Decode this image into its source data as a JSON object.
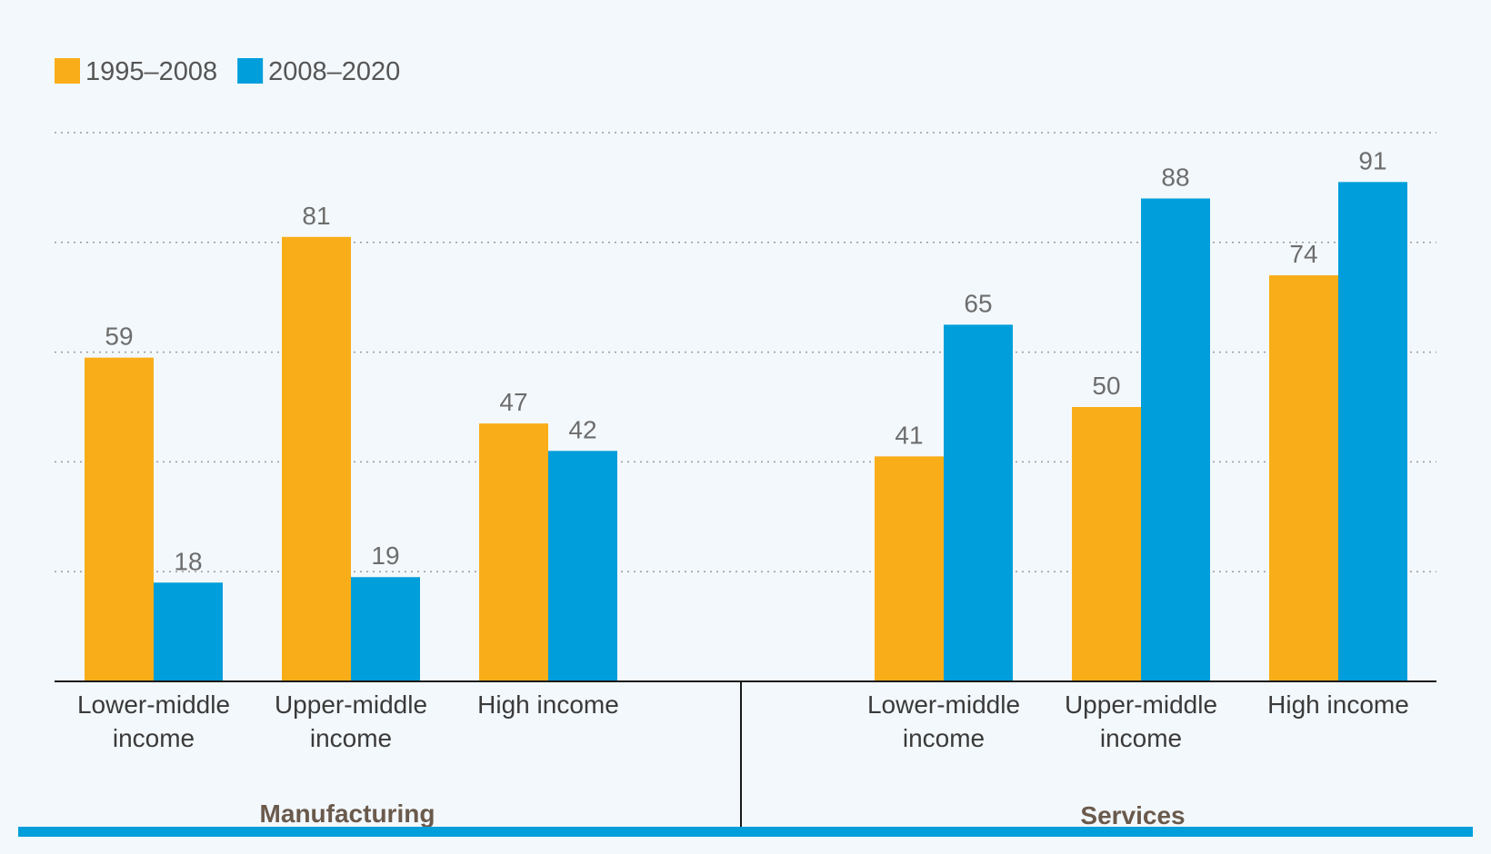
{
  "chart_data": {
    "type": "bar",
    "title": "",
    "xlabel": "",
    "ylabel": "",
    "ylim": [
      0,
      100
    ],
    "grid": true,
    "legend_position": "top-left",
    "colors": {
      "series_1": "#f9ae19",
      "series_2": "#009edb",
      "background": "#f3f8fc",
      "footer_bar": "#009edb"
    },
    "groups": [
      {
        "name": "Manufacturing",
        "categories": [
          "Lower-middle\nincome",
          "Upper-middle\nincome",
          "High income"
        ]
      },
      {
        "name": "Services",
        "categories": [
          "Lower-middle\nincome",
          "Upper-middle\nincome",
          "High income"
        ]
      }
    ],
    "series": [
      {
        "name": "1995–2008",
        "values": [
          59,
          81,
          47,
          41,
          50,
          74
        ]
      },
      {
        "name": "2008–2020",
        "values": [
          18,
          19,
          42,
          65,
          88,
          91
        ]
      }
    ]
  }
}
